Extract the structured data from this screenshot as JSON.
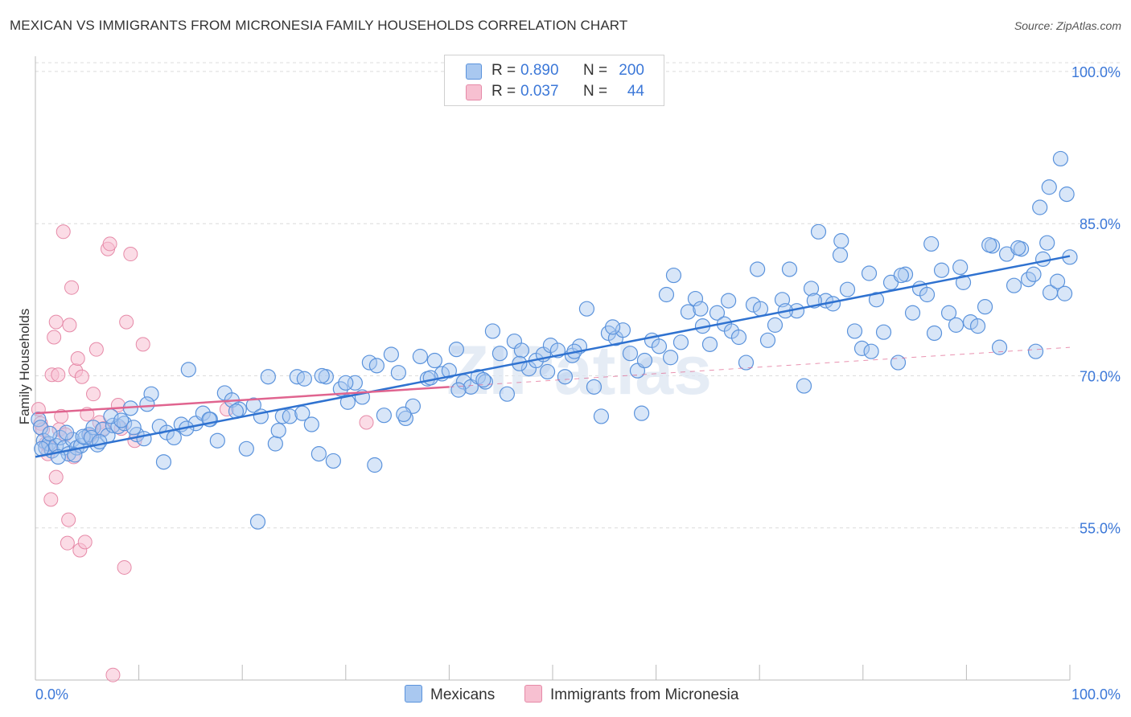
{
  "header": {
    "title": "MEXICAN VS IMMIGRANTS FROM MICRONESIA FAMILY HOUSEHOLDS CORRELATION CHART",
    "source": "Source: ZipAtlas.com"
  },
  "legend": {
    "series": [
      {
        "r_label": "R =",
        "r_value": "0.890",
        "n_label": "N =",
        "n_value": "200"
      },
      {
        "r_label": "R =",
        "r_value": "0.037",
        "n_label": "N =",
        "n_value": "44"
      }
    ],
    "bottom": [
      "Mexicans",
      "Immigrants from Micronesia"
    ]
  },
  "colors": {
    "blue_fill": "#a9c8f0",
    "blue_stroke": "#5b93dc",
    "blue_line": "#2f72d0",
    "pink_fill": "#f7c0d1",
    "pink_stroke": "#e68aa8",
    "pink_line": "#e0648f",
    "tick_label": "#3c78d8",
    "grid": "#dcdcdc"
  },
  "watermark": "ZIPatlas",
  "chart_data": {
    "type": "scatter",
    "title": "MEXICAN VS IMMIGRANTS FROM MICRONESIA FAMILY HOUSEHOLDS CORRELATION CHART",
    "xlabel": "",
    "ylabel": "Family Households",
    "xlim": [
      0,
      100
    ],
    "ylim": [
      40,
      101.5
    ],
    "x_tick_labels": [
      "0.0%",
      "100.0%"
    ],
    "y_ticks": [
      55,
      70,
      85,
      100
    ],
    "y_tick_labels": [
      "55.0%",
      "70.0%",
      "85.0%",
      "100.0%"
    ],
    "grid": true,
    "legend_position": "top-center",
    "series": [
      {
        "name": "Mexicans",
        "r": 0.89,
        "n": 200,
        "trend": {
          "x": [
            0,
            100
          ],
          "y": [
            62.0,
            81.8
          ]
        },
        "points": [
          [
            0.3,
            65.7
          ],
          [
            0.5,
            64.9
          ],
          [
            0.8,
            63.6
          ],
          [
            1.0,
            62.9
          ],
          [
            1.3,
            63.3
          ],
          [
            1.6,
            62.6
          ],
          [
            2.0,
            63.1
          ],
          [
            2.4,
            63.9
          ],
          [
            2.8,
            62.9
          ],
          [
            3.2,
            62.3
          ],
          [
            3.6,
            63.7
          ],
          [
            4.0,
            62.9
          ],
          [
            4.4,
            63.1
          ],
          [
            4.8,
            63.9
          ],
          [
            5.2,
            64.2
          ],
          [
            5.6,
            64.9
          ],
          [
            6.0,
            63.2
          ],
          [
            6.5,
            64.7
          ],
          [
            7.0,
            64.1
          ],
          [
            7.5,
            65.1
          ],
          [
            8.0,
            65.0
          ],
          [
            8.6,
            65.3
          ],
          [
            9.2,
            66.8
          ],
          [
            9.8,
            64.2
          ],
          [
            10.5,
            63.8
          ],
          [
            11.2,
            68.2
          ],
          [
            12.0,
            65.0
          ],
          [
            12.7,
            64.4
          ],
          [
            13.4,
            63.9
          ],
          [
            14.1,
            65.2
          ],
          [
            14.8,
            70.6
          ],
          [
            15.5,
            65.3
          ],
          [
            16.2,
            66.3
          ],
          [
            16.9,
            65.7
          ],
          [
            17.6,
            63.6
          ],
          [
            18.3,
            68.3
          ],
          [
            19.0,
            67.6
          ],
          [
            19.7,
            66.7
          ],
          [
            20.4,
            62.8
          ],
          [
            21.1,
            67.1
          ],
          [
            21.8,
            66.0
          ],
          [
            22.5,
            69.9
          ],
          [
            23.2,
            63.3
          ],
          [
            23.9,
            66.0
          ],
          [
            24.6,
            66.0
          ],
          [
            25.3,
            69.9
          ],
          [
            26.0,
            69.7
          ],
          [
            26.7,
            65.2
          ],
          [
            27.4,
            62.3
          ],
          [
            28.1,
            69.9
          ],
          [
            28.8,
            61.6
          ],
          [
            29.5,
            68.7
          ],
          [
            30.2,
            67.4
          ],
          [
            30.9,
            69.3
          ],
          [
            31.6,
            67.9
          ],
          [
            32.3,
            71.3
          ],
          [
            33.0,
            71.0
          ],
          [
            33.7,
            66.1
          ],
          [
            34.4,
            72.1
          ],
          [
            35.1,
            70.3
          ],
          [
            35.8,
            65.8
          ],
          [
            36.5,
            67.0
          ],
          [
            37.2,
            71.9
          ],
          [
            37.9,
            69.7
          ],
          [
            38.6,
            71.5
          ],
          [
            39.3,
            70.2
          ],
          [
            40.0,
            70.5
          ],
          [
            40.7,
            72.6
          ],
          [
            41.4,
            69.4
          ],
          [
            42.1,
            68.9
          ],
          [
            42.8,
            69.9
          ],
          [
            43.5,
            69.4
          ],
          [
            44.2,
            74.4
          ],
          [
            44.9,
            72.2
          ],
          [
            45.6,
            68.2
          ],
          [
            46.3,
            73.4
          ],
          [
            47.0,
            72.5
          ],
          [
            47.7,
            70.7
          ],
          [
            48.4,
            71.5
          ],
          [
            49.1,
            72.1
          ],
          [
            49.8,
            73.0
          ],
          [
            50.5,
            72.5
          ],
          [
            51.2,
            69.9
          ],
          [
            51.9,
            72.0
          ],
          [
            52.6,
            72.9
          ],
          [
            53.3,
            76.6
          ],
          [
            54.0,
            68.9
          ],
          [
            54.7,
            66.0
          ],
          [
            55.4,
            74.2
          ],
          [
            56.1,
            73.7
          ],
          [
            56.8,
            74.5
          ],
          [
            57.5,
            72.2
          ],
          [
            58.2,
            70.5
          ],
          [
            58.9,
            71.5
          ],
          [
            59.6,
            73.5
          ],
          [
            60.3,
            72.9
          ],
          [
            61.0,
            78.0
          ],
          [
            61.7,
            79.9
          ],
          [
            62.4,
            73.3
          ],
          [
            63.1,
            76.3
          ],
          [
            63.8,
            77.6
          ],
          [
            64.5,
            74.9
          ],
          [
            65.2,
            73.1
          ],
          [
            65.9,
            76.2
          ],
          [
            66.6,
            75.1
          ],
          [
            67.3,
            74.4
          ],
          [
            68.0,
            73.8
          ],
          [
            68.7,
            71.3
          ],
          [
            69.4,
            77.0
          ],
          [
            70.1,
            76.6
          ],
          [
            70.8,
            73.5
          ],
          [
            71.5,
            75.0
          ],
          [
            72.2,
            77.5
          ],
          [
            72.9,
            80.5
          ],
          [
            73.6,
            76.4
          ],
          [
            74.3,
            69.0
          ],
          [
            75.0,
            78.6
          ],
          [
            75.7,
            84.2
          ],
          [
            76.4,
            77.4
          ],
          [
            77.1,
            77.1
          ],
          [
            77.8,
            81.9
          ],
          [
            78.5,
            78.5
          ],
          [
            79.2,
            74.4
          ],
          [
            79.9,
            72.7
          ],
          [
            80.6,
            80.1
          ],
          [
            81.3,
            77.5
          ],
          [
            82.0,
            74.3
          ],
          [
            82.7,
            79.2
          ],
          [
            83.4,
            71.3
          ],
          [
            84.1,
            80.0
          ],
          [
            84.8,
            76.2
          ],
          [
            85.5,
            78.6
          ],
          [
            86.2,
            78.0
          ],
          [
            86.9,
            74.2
          ],
          [
            87.6,
            80.4
          ],
          [
            88.3,
            76.2
          ],
          [
            89.0,
            75.0
          ],
          [
            89.7,
            79.2
          ],
          [
            90.4,
            75.3
          ],
          [
            91.1,
            74.9
          ],
          [
            91.8,
            76.8
          ],
          [
            92.5,
            82.8
          ],
          [
            93.2,
            72.8
          ],
          [
            93.9,
            82.0
          ],
          [
            94.6,
            78.9
          ],
          [
            95.3,
            82.5
          ],
          [
            96.0,
            79.5
          ],
          [
            96.7,
            72.4
          ],
          [
            97.4,
            81.5
          ],
          [
            98.1,
            78.2
          ],
          [
            98.8,
            79.3
          ],
          [
            99.5,
            78.1
          ],
          [
            0.6,
            62.8
          ],
          [
            1.4,
            64.3
          ],
          [
            2.2,
            62.0
          ],
          [
            3.0,
            64.4
          ],
          [
            3.8,
            62.2
          ],
          [
            4.6,
            64.0
          ],
          [
            5.4,
            63.9
          ],
          [
            6.2,
            63.5
          ],
          [
            7.3,
            66.0
          ],
          [
            8.3,
            65.6
          ],
          [
            9.5,
            64.9
          ],
          [
            10.8,
            67.2
          ],
          [
            12.4,
            61.5
          ],
          [
            14.6,
            64.8
          ],
          [
            16.8,
            65.7
          ],
          [
            19.4,
            66.5
          ],
          [
            21.5,
            55.6
          ],
          [
            23.5,
            64.6
          ],
          [
            25.8,
            66.3
          ],
          [
            27.7,
            70.0
          ],
          [
            30.0,
            69.3
          ],
          [
            32.8,
            61.2
          ],
          [
            35.6,
            66.2
          ],
          [
            38.2,
            69.8
          ],
          [
            40.9,
            68.6
          ],
          [
            43.3,
            69.6
          ],
          [
            46.8,
            71.2
          ],
          [
            49.5,
            70.4
          ],
          [
            52.1,
            72.4
          ],
          [
            55.8,
            74.8
          ],
          [
            58.6,
            66.3
          ],
          [
            61.4,
            71.8
          ],
          [
            64.3,
            76.6
          ],
          [
            67.0,
            77.4
          ],
          [
            69.8,
            80.5
          ],
          [
            72.5,
            76.4
          ],
          [
            75.3,
            77.4
          ],
          [
            77.9,
            83.3
          ],
          [
            80.8,
            72.4
          ],
          [
            83.7,
            79.9
          ],
          [
            86.6,
            83.0
          ],
          [
            89.4,
            80.7
          ],
          [
            92.2,
            82.9
          ],
          [
            95.0,
            82.6
          ],
          [
            97.1,
            86.6
          ],
          [
            98.0,
            88.6
          ],
          [
            99.1,
            91.4
          ],
          [
            99.7,
            87.9
          ],
          [
            97.8,
            83.1
          ],
          [
            96.5,
            80.0
          ],
          [
            100.0,
            81.7
          ]
        ]
      },
      {
        "name": "Immigrants from Micronesia",
        "r": 0.037,
        "n": 44,
        "trend": {
          "x": [
            0,
            40
          ],
          "y": [
            66.3,
            68.9
          ]
        },
        "points": [
          [
            0.3,
            66.7
          ],
          [
            0.5,
            65.3
          ],
          [
            0.7,
            64.7
          ],
          [
            1.0,
            63.3
          ],
          [
            1.2,
            62.3
          ],
          [
            1.4,
            62.9
          ],
          [
            1.6,
            70.1
          ],
          [
            1.8,
            73.8
          ],
          [
            2.0,
            75.3
          ],
          [
            2.2,
            70.1
          ],
          [
            2.3,
            64.7
          ],
          [
            2.5,
            66.0
          ],
          [
            2.7,
            84.2
          ],
          [
            2.9,
            64.2
          ],
          [
            3.1,
            53.5
          ],
          [
            3.3,
            75.0
          ],
          [
            3.5,
            78.7
          ],
          [
            3.7,
            62.0
          ],
          [
            3.9,
            70.5
          ],
          [
            4.1,
            71.7
          ],
          [
            4.3,
            52.8
          ],
          [
            4.5,
            69.9
          ],
          [
            4.8,
            53.6
          ],
          [
            5.0,
            66.2
          ],
          [
            5.3,
            64.1
          ],
          [
            5.6,
            68.2
          ],
          [
            5.9,
            72.6
          ],
          [
            6.2,
            65.4
          ],
          [
            6.6,
            64.8
          ],
          [
            7.0,
            82.5
          ],
          [
            7.2,
            83.0
          ],
          [
            7.5,
            40.5
          ],
          [
            8.0,
            67.1
          ],
          [
            8.3,
            64.8
          ],
          [
            8.6,
            51.1
          ],
          [
            8.8,
            75.3
          ],
          [
            9.2,
            82.0
          ],
          [
            9.6,
            63.6
          ],
          [
            10.4,
            73.1
          ],
          [
            18.5,
            66.7
          ],
          [
            32.0,
            65.4
          ],
          [
            1.5,
            57.8
          ],
          [
            2.0,
            60.0
          ],
          [
            3.2,
            55.8
          ]
        ]
      }
    ]
  }
}
